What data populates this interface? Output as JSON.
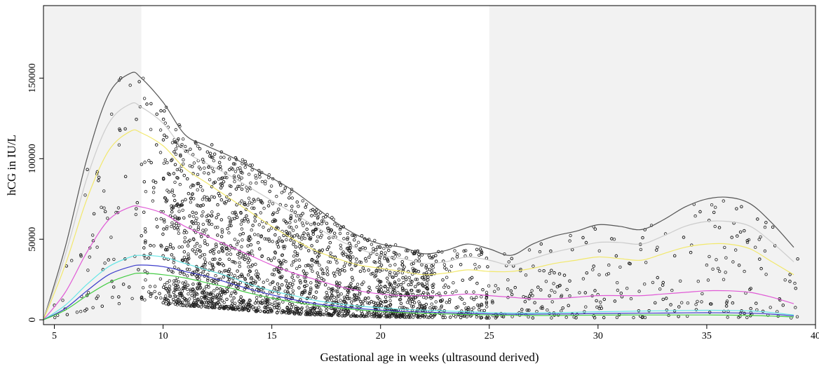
{
  "chart_data": {
    "type": "scatter",
    "title": "",
    "xlabel": "Gestational age in weeks (ultrasound derived)",
    "ylabel": "hCG in IU/L",
    "xlim": [
      4.5,
      40
    ],
    "ylim": [
      -3000,
      195000
    ],
    "xticks": [
      5,
      10,
      15,
      20,
      25,
      30,
      35,
      40
    ],
    "yticks": [
      0,
      50000,
      100000,
      150000
    ],
    "shaded_regions": [
      {
        "from": 4.5,
        "to": 9,
        "color": "#f2f2f2"
      },
      {
        "from": 25,
        "to": 40,
        "color": "#f2f2f2"
      }
    ],
    "grid": false,
    "legend": "none",
    "scatter_note": "about 5000 open-circle points, dense between 10 and 25 weeks",
    "series": [
      {
        "color": "#555555",
        "x": [
          4.5,
          5.5,
          6.5,
          7.5,
          8.5,
          9,
          10,
          11,
          12,
          13,
          14,
          15,
          16,
          17,
          18,
          19,
          20,
          21,
          22,
          23,
          24,
          25,
          26,
          27,
          28,
          29,
          30,
          31,
          32,
          33,
          34,
          35,
          36,
          37,
          38,
          39
        ],
        "y": [
          0,
          45000,
          100000,
          140000,
          153000,
          150000,
          135000,
          115000,
          108000,
          102000,
          95000,
          88000,
          80000,
          70000,
          60000,
          52000,
          47000,
          45000,
          41000,
          43000,
          47000,
          44000,
          40000,
          47000,
          52000,
          55000,
          59000,
          58000,
          56000,
          62000,
          70000,
          75000,
          76000,
          72000,
          60000,
          45000
        ]
      },
      {
        "color": "#cccccc",
        "x": [
          4.5,
          5.5,
          6.5,
          7.5,
          8.5,
          9,
          10,
          11,
          12,
          13,
          14,
          15,
          16,
          17,
          18,
          19,
          20,
          21,
          22,
          23,
          24,
          25,
          26,
          27,
          28,
          29,
          30,
          31,
          32,
          33,
          34,
          35,
          36,
          37,
          38,
          39
        ],
        "y": [
          0,
          40000,
          88000,
          122000,
          134000,
          132000,
          122000,
          105000,
          97000,
          90000,
          82000,
          74000,
          66000,
          58000,
          50000,
          44000,
          40000,
          38000,
          35000,
          36000,
          39000,
          37000,
          34000,
          38000,
          42000,
          45000,
          48000,
          48000,
          47000,
          52000,
          58000,
          61000,
          61000,
          58000,
          48000,
          36000
        ]
      },
      {
        "color": "#f2e86b",
        "x": [
          4.5,
          5.5,
          6.5,
          7.5,
          8.5,
          9,
          10,
          11,
          12,
          13,
          14,
          15,
          16,
          17,
          18,
          19,
          20,
          21,
          22,
          23,
          24,
          25,
          26,
          27,
          28,
          29,
          30,
          31,
          32,
          33,
          34,
          35,
          36,
          37,
          38,
          39
        ],
        "y": [
          0,
          34000,
          75000,
          105000,
          117000,
          116000,
          108000,
          94000,
          85000,
          76000,
          67000,
          58000,
          50000,
          43000,
          38000,
          34000,
          32000,
          30000,
          28000,
          29000,
          31000,
          30000,
          30000,
          32000,
          35000,
          37000,
          39000,
          38000,
          37000,
          41000,
          45000,
          47000,
          47000,
          44000,
          36000,
          28000
        ]
      },
      {
        "color": "#e05ad6",
        "x": [
          4.5,
          5.5,
          6.5,
          7.5,
          8.5,
          9,
          10,
          11,
          12,
          13,
          14,
          15,
          16,
          17,
          18,
          19,
          20,
          21,
          22,
          23,
          24,
          25,
          26,
          27,
          28,
          29,
          30,
          31,
          32,
          33,
          34,
          35,
          36,
          37,
          38,
          39
        ],
        "y": [
          0,
          17000,
          42000,
          62000,
          70000,
          70000,
          66000,
          58000,
          52000,
          46000,
          40000,
          34000,
          29000,
          25000,
          21000,
          18000,
          16000,
          15000,
          15000,
          15000,
          16000,
          15000,
          14000,
          13000,
          13000,
          14000,
          15000,
          15000,
          15000,
          16000,
          17000,
          18000,
          18000,
          17000,
          14000,
          10000
        ]
      },
      {
        "color": "#66e6e6",
        "x": [
          4.5,
          5.5,
          6.5,
          7.5,
          8.5,
          9,
          10,
          11,
          12,
          13,
          14,
          15,
          16,
          17,
          18,
          19,
          20,
          21,
          22,
          23,
          24,
          25,
          26,
          27,
          28,
          29,
          30,
          31,
          32,
          33,
          34,
          35,
          36,
          37,
          38,
          39
        ],
        "y": [
          0,
          9000,
          22000,
          33000,
          39000,
          40000,
          39000,
          35000,
          31000,
          27000,
          22000,
          18000,
          15000,
          12000,
          10000,
          8500,
          7500,
          6500,
          6000,
          5500,
          5000,
          4500,
          4200,
          4200,
          4400,
          4700,
          5000,
          5200,
          5400,
          5600,
          5800,
          5900,
          5800,
          5500,
          4500,
          3000
        ]
      },
      {
        "color": "#3d3dcc",
        "x": [
          4.5,
          5.5,
          6.5,
          7.5,
          8.5,
          9,
          10,
          11,
          12,
          13,
          14,
          15,
          16,
          17,
          18,
          19,
          20,
          21,
          22,
          23,
          24,
          25,
          26,
          27,
          28,
          29,
          30,
          31,
          32,
          33,
          34,
          35,
          36,
          37,
          38,
          39
        ],
        "y": [
          0,
          7000,
          18000,
          28000,
          33000,
          34000,
          33000,
          30000,
          27000,
          23000,
          19000,
          15500,
          12500,
          10000,
          8500,
          7000,
          6000,
          5200,
          4800,
          4400,
          4000,
          3700,
          3500,
          3500,
          3600,
          3700,
          3900,
          4000,
          4100,
          4200,
          4300,
          4400,
          4300,
          4100,
          3500,
          2500
        ]
      },
      {
        "color": "#44cc44",
        "x": [
          4.5,
          5.5,
          6.5,
          7.5,
          8.5,
          9,
          10,
          11,
          12,
          13,
          14,
          15,
          16,
          17,
          18,
          19,
          20,
          21,
          22,
          23,
          24,
          25,
          26,
          27,
          28,
          29,
          30,
          31,
          32,
          33,
          34,
          35,
          36,
          37,
          38,
          39
        ],
        "y": [
          0,
          6000,
          15000,
          23000,
          28000,
          29000,
          28000,
          26000,
          23000,
          20000,
          16500,
          13500,
          11000,
          9000,
          7500,
          6200,
          5200,
          4500,
          4000,
          3600,
          3300,
          3000,
          2800,
          2700,
          2700,
          2800,
          2900,
          2950,
          3000,
          3000,
          3000,
          3000,
          2900,
          2700,
          2300,
          1800
        ]
      }
    ]
  }
}
